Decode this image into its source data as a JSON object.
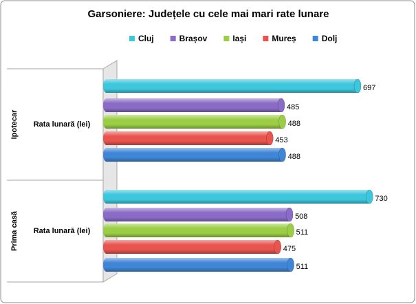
{
  "chart_data": {
    "type": "bar",
    "orientation": "horizontal",
    "title": "Garsoniere: Județele cu cele mai mari rate lunare",
    "groups": [
      "Ipotecar",
      "Prima casă"
    ],
    "categories": [
      "Rata lunară (lei)",
      "Rata lunară (lei)"
    ],
    "series": [
      {
        "name": "Cluj",
        "color": "#3ec6dc",
        "values": [
          697,
          730
        ]
      },
      {
        "name": "Brașov",
        "color": "#8a6cc6",
        "values": [
          485,
          508
        ]
      },
      {
        "name": "Iași",
        "color": "#9bcd45",
        "values": [
          488,
          511
        ]
      },
      {
        "name": "Mureș",
        "color": "#e8544e",
        "values": [
          453,
          475
        ]
      },
      {
        "name": "Dolj",
        "color": "#3f86d6",
        "values": [
          488,
          511
        ]
      }
    ],
    "xlim": [
      0,
      800
    ],
    "legend": "top"
  }
}
